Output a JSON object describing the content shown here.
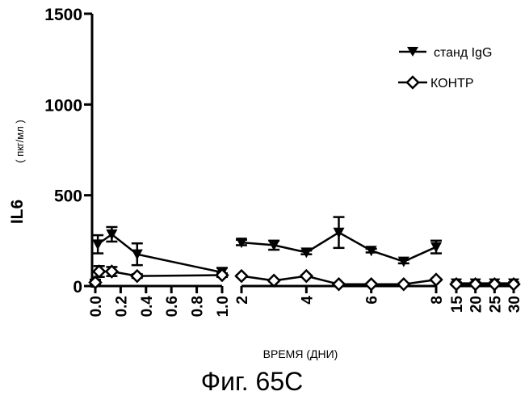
{
  "chart_data": {
    "type": "line",
    "ylabel_main": "IL6",
    "ylabel_unit": "( пкг/мл )",
    "xlabel": "ВРЕМЯ (ДНИ)",
    "caption": "Фиг. 65C",
    "ylim": [
      0,
      1500
    ],
    "y_ticks": [
      "0",
      "500",
      "1000",
      "1500"
    ],
    "segments": [
      {
        "xlim": [
          0,
          1.0
        ],
        "ticks": [
          "0.0",
          "0.2",
          "0.4",
          "0.6",
          "0.8",
          "1.0"
        ],
        "tick_values": [
          0,
          0.2,
          0.4,
          0.6,
          0.8,
          1.0
        ]
      },
      {
        "xlim": [
          2,
          8
        ],
        "ticks": [
          "2",
          "4",
          "6",
          "8"
        ],
        "tick_values": [
          2,
          4,
          6,
          8
        ]
      },
      {
        "xlim": [
          15,
          30
        ],
        "ticks": [
          "15",
          "20",
          "25",
          "30"
        ],
        "tick_values": [
          15,
          20,
          25,
          30
        ]
      }
    ],
    "legend": {
      "position": "top-right"
    },
    "series": [
      {
        "name": "станд IgG",
        "marker": "triangle-down",
        "points": [
          {
            "x": 0.02,
            "y": 230,
            "err": 50
          },
          {
            "x": 0.13,
            "y": 285,
            "err": 40
          },
          {
            "x": 0.33,
            "y": 175,
            "err": 60
          },
          {
            "x": 1.0,
            "y": 75,
            "err": 25
          },
          {
            "x": 2,
            "y": 240,
            "err": 15
          },
          {
            "x": 3,
            "y": 225,
            "err": 25
          },
          {
            "x": 4,
            "y": 185,
            "err": 10
          },
          {
            "x": 5,
            "y": 295,
            "err": 85
          },
          {
            "x": 6,
            "y": 195,
            "err": 10
          },
          {
            "x": 7,
            "y": 135,
            "err": 10
          },
          {
            "x": 8,
            "y": 215,
            "err": 35
          },
          {
            "x": 15,
            "y": 15,
            "err": 5
          },
          {
            "x": 20,
            "y": 15,
            "err": 5
          },
          {
            "x": 25,
            "y": 15,
            "err": 5
          },
          {
            "x": 30,
            "y": 15,
            "err": 5
          }
        ]
      },
      {
        "name": "КОНТР",
        "marker": "diamond",
        "points": [
          {
            "x": 0.0,
            "y": 20,
            "err": 15
          },
          {
            "x": 0.03,
            "y": 80,
            "err": 30
          },
          {
            "x": 0.13,
            "y": 80,
            "err": 25
          },
          {
            "x": 0.33,
            "y": 55,
            "err": 10
          },
          {
            "x": 1.0,
            "y": 60,
            "err": 10
          },
          {
            "x": 2,
            "y": 55,
            "err": 5
          },
          {
            "x": 3,
            "y": 30,
            "err": 5
          },
          {
            "x": 4,
            "y": 55,
            "err": 5
          },
          {
            "x": 5,
            "y": 10,
            "err": 5
          },
          {
            "x": 6,
            "y": 10,
            "err": 5
          },
          {
            "x": 7,
            "y": 10,
            "err": 5
          },
          {
            "x": 8,
            "y": 35,
            "err": 5
          },
          {
            "x": 15,
            "y": 10,
            "err": 5
          },
          {
            "x": 20,
            "y": 10,
            "err": 5
          },
          {
            "x": 25,
            "y": 10,
            "err": 5
          },
          {
            "x": 30,
            "y": 10,
            "err": 5
          }
        ]
      }
    ]
  }
}
